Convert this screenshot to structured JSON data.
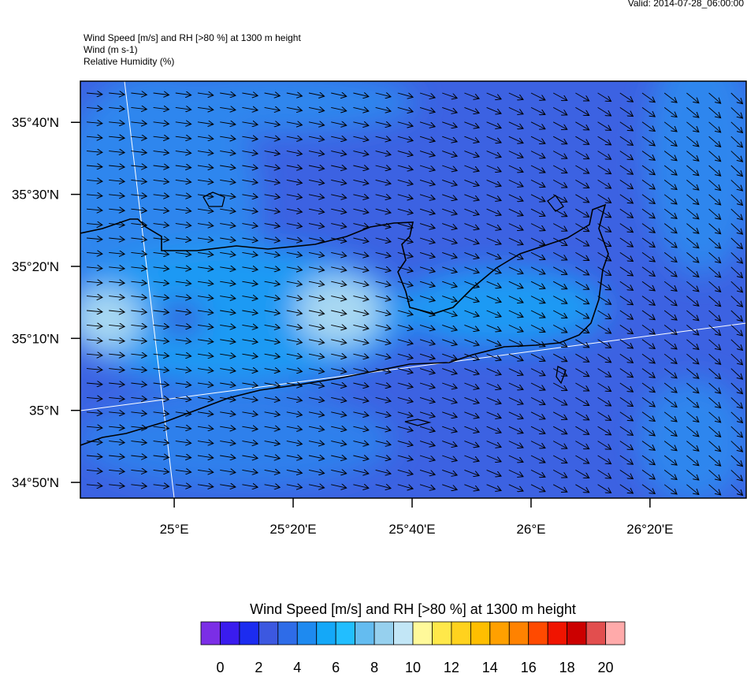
{
  "valid": "Valid: 2014-07-28_06:00:00",
  "header": {
    "title": "Wind Speed [m/s] and RH [>80 %] at 1300 m height",
    "line2": "Wind   (m s-1)",
    "line3": "Relative Humidity   (%)"
  },
  "map": {
    "xlim": [
      24.737,
      26.603
    ],
    "ylim": [
      34.797,
      35.762
    ],
    "xticks": [
      {
        "value": 25,
        "label": "25°E"
      },
      {
        "value": 25.3333,
        "label": "25°20'E"
      },
      {
        "value": 25.6667,
        "label": "25°40'E"
      },
      {
        "value": 26,
        "label": "26°E"
      },
      {
        "value": 26.3333,
        "label": "26°20'E"
      }
    ],
    "yticks": [
      {
        "value": 35.6667,
        "label": "35°40'N"
      },
      {
        "value": 35.5,
        "label": "35°30'N"
      },
      {
        "value": 35.3333,
        "label": "35°20'N"
      },
      {
        "value": 35.1667,
        "label": "35°10'N"
      },
      {
        "value": 35,
        "label": "35°N"
      },
      {
        "value": 34.8333,
        "label": "34°50'N"
      }
    ]
  },
  "colorbar": {
    "title": "Wind Speed [m/s] and RH [>80 %] at 1300 m height",
    "range": [
      -1,
      21
    ],
    "ticks": [
      0,
      2,
      4,
      6,
      8,
      10,
      12,
      14,
      16,
      18,
      20
    ],
    "colors": [
      "#7b2ee6",
      "#3a1cee",
      "#1c2cf0",
      "#3c58e0",
      "#2e6ce8",
      "#1e8af0",
      "#14a8f8",
      "#22beff",
      "#64bcf0",
      "#96d0ee",
      "#c2e6f6",
      "#fff99a",
      "#ffe84a",
      "#ffd21e",
      "#ffbe00",
      "#ffa000",
      "#ff8200",
      "#ff4a00",
      "#f01400",
      "#cc0000",
      "#e24e4e",
      "#ffaaaa"
    ]
  }
}
